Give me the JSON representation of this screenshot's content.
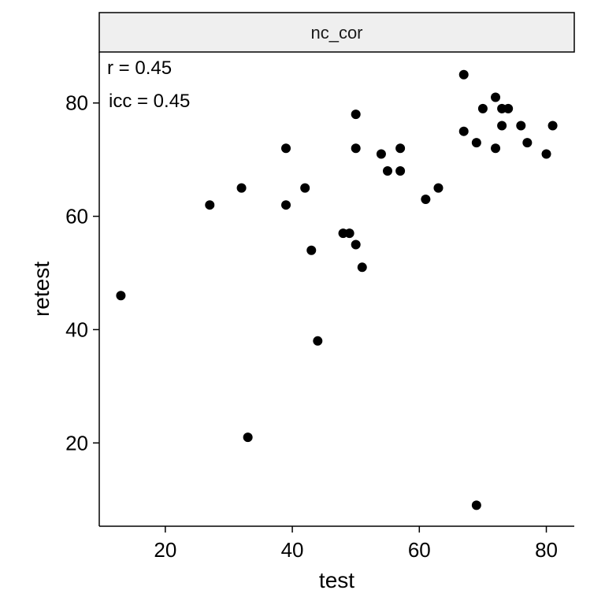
{
  "chart_data": {
    "type": "scatter",
    "facet_label": "nc_cor",
    "xlabel": "test",
    "ylabel": "retest",
    "xlim": [
      9.6,
      84.4
    ],
    "ylim": [
      5.3,
      89.0
    ],
    "xticks": [
      20,
      40,
      60,
      80
    ],
    "yticks": [
      20,
      40,
      60,
      80
    ],
    "grid": false,
    "point_color": "#000000",
    "annotations": [
      "r = 0.45",
      "icc = 0.45"
    ],
    "points": [
      {
        "x": 13,
        "y": 46
      },
      {
        "x": 27,
        "y": 62
      },
      {
        "x": 32,
        "y": 65
      },
      {
        "x": 33,
        "y": 21
      },
      {
        "x": 39,
        "y": 72
      },
      {
        "x": 39,
        "y": 62
      },
      {
        "x": 42,
        "y": 65
      },
      {
        "x": 43,
        "y": 54
      },
      {
        "x": 44,
        "y": 38
      },
      {
        "x": 48,
        "y": 57
      },
      {
        "x": 49,
        "y": 57
      },
      {
        "x": 50,
        "y": 78
      },
      {
        "x": 50,
        "y": 72
      },
      {
        "x": 50,
        "y": 55
      },
      {
        "x": 51,
        "y": 51
      },
      {
        "x": 54,
        "y": 71
      },
      {
        "x": 55,
        "y": 68
      },
      {
        "x": 57,
        "y": 72
      },
      {
        "x": 57,
        "y": 68
      },
      {
        "x": 61,
        "y": 63
      },
      {
        "x": 63,
        "y": 65
      },
      {
        "x": 67,
        "y": 85
      },
      {
        "x": 67,
        "y": 75
      },
      {
        "x": 69,
        "y": 73
      },
      {
        "x": 69,
        "y": 9
      },
      {
        "x": 70,
        "y": 79
      },
      {
        "x": 72,
        "y": 81
      },
      {
        "x": 72,
        "y": 72
      },
      {
        "x": 73,
        "y": 79
      },
      {
        "x": 73,
        "y": 76
      },
      {
        "x": 74,
        "y": 79
      },
      {
        "x": 76,
        "y": 76
      },
      {
        "x": 77,
        "y": 73
      },
      {
        "x": 80,
        "y": 71
      },
      {
        "x": 81,
        "y": 76
      }
    ]
  }
}
